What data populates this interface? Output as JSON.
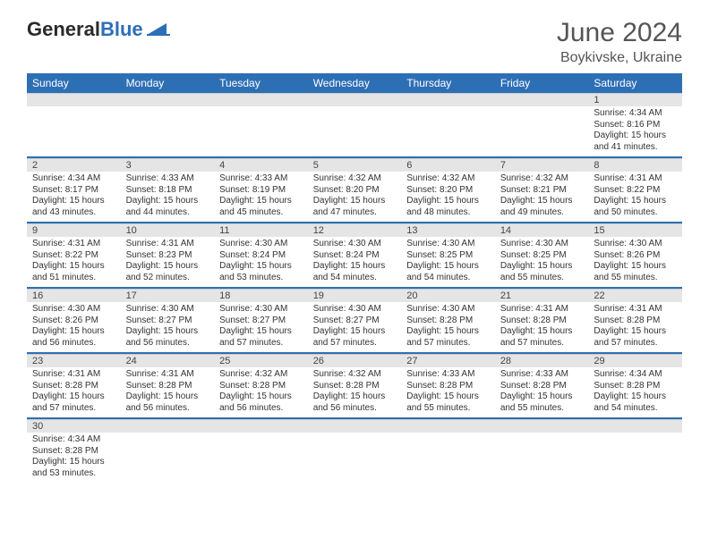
{
  "logo": {
    "word1": "General",
    "word2": "Blue"
  },
  "title": "June 2024",
  "location": "Boykivske, Ukraine",
  "colors": {
    "header_bg": "#2d6fb5",
    "header_text": "#ffffff",
    "daynum_bg": "#e5e5e5",
    "rule": "#2d6fb5",
    "body_text": "#333333",
    "title_text": "#555555"
  },
  "weekdays": [
    "Sunday",
    "Monday",
    "Tuesday",
    "Wednesday",
    "Thursday",
    "Friday",
    "Saturday"
  ],
  "weeks": [
    [
      null,
      null,
      null,
      null,
      null,
      null,
      {
        "n": "1",
        "sr": "Sunrise: 4:34 AM",
        "ss": "Sunset: 8:16 PM",
        "dl": "Daylight: 15 hours and 41 minutes."
      }
    ],
    [
      {
        "n": "2",
        "sr": "Sunrise: 4:34 AM",
        "ss": "Sunset: 8:17 PM",
        "dl": "Daylight: 15 hours and 43 minutes."
      },
      {
        "n": "3",
        "sr": "Sunrise: 4:33 AM",
        "ss": "Sunset: 8:18 PM",
        "dl": "Daylight: 15 hours and 44 minutes."
      },
      {
        "n": "4",
        "sr": "Sunrise: 4:33 AM",
        "ss": "Sunset: 8:19 PM",
        "dl": "Daylight: 15 hours and 45 minutes."
      },
      {
        "n": "5",
        "sr": "Sunrise: 4:32 AM",
        "ss": "Sunset: 8:20 PM",
        "dl": "Daylight: 15 hours and 47 minutes."
      },
      {
        "n": "6",
        "sr": "Sunrise: 4:32 AM",
        "ss": "Sunset: 8:20 PM",
        "dl": "Daylight: 15 hours and 48 minutes."
      },
      {
        "n": "7",
        "sr": "Sunrise: 4:32 AM",
        "ss": "Sunset: 8:21 PM",
        "dl": "Daylight: 15 hours and 49 minutes."
      },
      {
        "n": "8",
        "sr": "Sunrise: 4:31 AM",
        "ss": "Sunset: 8:22 PM",
        "dl": "Daylight: 15 hours and 50 minutes."
      }
    ],
    [
      {
        "n": "9",
        "sr": "Sunrise: 4:31 AM",
        "ss": "Sunset: 8:22 PM",
        "dl": "Daylight: 15 hours and 51 minutes."
      },
      {
        "n": "10",
        "sr": "Sunrise: 4:31 AM",
        "ss": "Sunset: 8:23 PM",
        "dl": "Daylight: 15 hours and 52 minutes."
      },
      {
        "n": "11",
        "sr": "Sunrise: 4:30 AM",
        "ss": "Sunset: 8:24 PM",
        "dl": "Daylight: 15 hours and 53 minutes."
      },
      {
        "n": "12",
        "sr": "Sunrise: 4:30 AM",
        "ss": "Sunset: 8:24 PM",
        "dl": "Daylight: 15 hours and 54 minutes."
      },
      {
        "n": "13",
        "sr": "Sunrise: 4:30 AM",
        "ss": "Sunset: 8:25 PM",
        "dl": "Daylight: 15 hours and 54 minutes."
      },
      {
        "n": "14",
        "sr": "Sunrise: 4:30 AM",
        "ss": "Sunset: 8:25 PM",
        "dl": "Daylight: 15 hours and 55 minutes."
      },
      {
        "n": "15",
        "sr": "Sunrise: 4:30 AM",
        "ss": "Sunset: 8:26 PM",
        "dl": "Daylight: 15 hours and 55 minutes."
      }
    ],
    [
      {
        "n": "16",
        "sr": "Sunrise: 4:30 AM",
        "ss": "Sunset: 8:26 PM",
        "dl": "Daylight: 15 hours and 56 minutes."
      },
      {
        "n": "17",
        "sr": "Sunrise: 4:30 AM",
        "ss": "Sunset: 8:27 PM",
        "dl": "Daylight: 15 hours and 56 minutes."
      },
      {
        "n": "18",
        "sr": "Sunrise: 4:30 AM",
        "ss": "Sunset: 8:27 PM",
        "dl": "Daylight: 15 hours and 57 minutes."
      },
      {
        "n": "19",
        "sr": "Sunrise: 4:30 AM",
        "ss": "Sunset: 8:27 PM",
        "dl": "Daylight: 15 hours and 57 minutes."
      },
      {
        "n": "20",
        "sr": "Sunrise: 4:30 AM",
        "ss": "Sunset: 8:28 PM",
        "dl": "Daylight: 15 hours and 57 minutes."
      },
      {
        "n": "21",
        "sr": "Sunrise: 4:31 AM",
        "ss": "Sunset: 8:28 PM",
        "dl": "Daylight: 15 hours and 57 minutes."
      },
      {
        "n": "22",
        "sr": "Sunrise: 4:31 AM",
        "ss": "Sunset: 8:28 PM",
        "dl": "Daylight: 15 hours and 57 minutes."
      }
    ],
    [
      {
        "n": "23",
        "sr": "Sunrise: 4:31 AM",
        "ss": "Sunset: 8:28 PM",
        "dl": "Daylight: 15 hours and 57 minutes."
      },
      {
        "n": "24",
        "sr": "Sunrise: 4:31 AM",
        "ss": "Sunset: 8:28 PM",
        "dl": "Daylight: 15 hours and 56 minutes."
      },
      {
        "n": "25",
        "sr": "Sunrise: 4:32 AM",
        "ss": "Sunset: 8:28 PM",
        "dl": "Daylight: 15 hours and 56 minutes."
      },
      {
        "n": "26",
        "sr": "Sunrise: 4:32 AM",
        "ss": "Sunset: 8:28 PM",
        "dl": "Daylight: 15 hours and 56 minutes."
      },
      {
        "n": "27",
        "sr": "Sunrise: 4:33 AM",
        "ss": "Sunset: 8:28 PM",
        "dl": "Daylight: 15 hours and 55 minutes."
      },
      {
        "n": "28",
        "sr": "Sunrise: 4:33 AM",
        "ss": "Sunset: 8:28 PM",
        "dl": "Daylight: 15 hours and 55 minutes."
      },
      {
        "n": "29",
        "sr": "Sunrise: 4:34 AM",
        "ss": "Sunset: 8:28 PM",
        "dl": "Daylight: 15 hours and 54 minutes."
      }
    ],
    [
      {
        "n": "30",
        "sr": "Sunrise: 4:34 AM",
        "ss": "Sunset: 8:28 PM",
        "dl": "Daylight: 15 hours and 53 minutes."
      },
      null,
      null,
      null,
      null,
      null,
      null
    ]
  ]
}
